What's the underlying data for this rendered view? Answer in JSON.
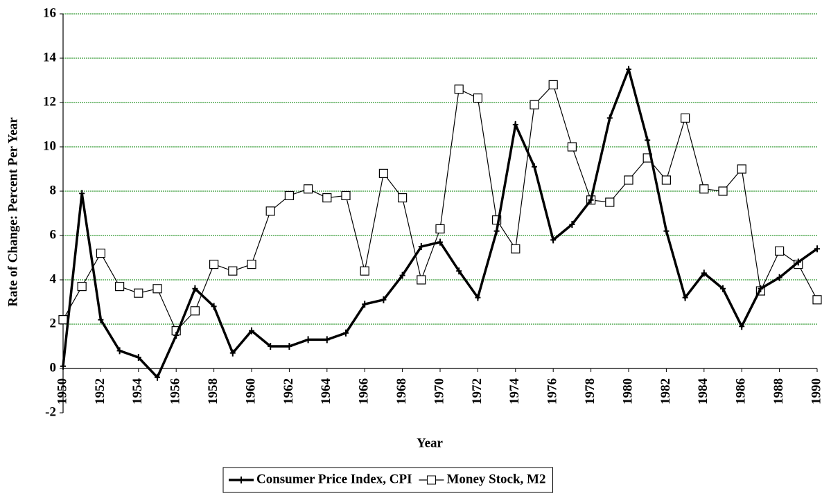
{
  "chart_data": {
    "type": "line",
    "x_label": "Year",
    "y_label": "Rate of Change: Percent Per Year",
    "x": [
      1950,
      1951,
      1952,
      1953,
      1954,
      1955,
      1956,
      1957,
      1958,
      1959,
      1960,
      1961,
      1962,
      1963,
      1964,
      1965,
      1966,
      1967,
      1968,
      1969,
      1970,
      1971,
      1972,
      1973,
      1974,
      1975,
      1976,
      1977,
      1978,
      1979,
      1980,
      1981,
      1982,
      1983,
      1984,
      1985,
      1986,
      1987,
      1988,
      1989,
      1990
    ],
    "series": [
      {
        "name": "Consumer Price Index, CPI",
        "color": "#000000",
        "marker": "plus",
        "values": [
          0.1,
          7.9,
          2.2,
          0.8,
          0.5,
          -0.4,
          1.5,
          3.6,
          2.8,
          0.7,
          1.7,
          1.0,
          1.0,
          1.3,
          1.3,
          1.6,
          2.9,
          3.1,
          4.2,
          5.5,
          5.7,
          4.4,
          3.2,
          6.2,
          11.0,
          9.1,
          5.8,
          6.5,
          7.6,
          11.3,
          13.5,
          10.3,
          6.2,
          3.2,
          4.3,
          3.6,
          1.9,
          3.6,
          4.1,
          4.8,
          5.4
        ]
      },
      {
        "name": "Money Stock, M2",
        "color": "#000000",
        "marker": "square",
        "values": [
          2.2,
          3.7,
          5.2,
          3.7,
          3.4,
          3.6,
          1.7,
          2.6,
          4.7,
          4.4,
          4.7,
          7.1,
          7.8,
          8.1,
          7.7,
          7.8,
          4.4,
          8.8,
          7.7,
          4.0,
          6.3,
          12.6,
          12.2,
          6.7,
          5.4,
          11.9,
          12.8,
          10.0,
          7.6,
          7.5,
          8.5,
          9.5,
          8.5,
          11.3,
          8.1,
          8.0,
          9.0,
          3.5,
          5.3,
          4.7,
          3.1
        ]
      }
    ],
    "xlim": [
      1950,
      1990
    ],
    "xticks": [
      1950,
      1952,
      1954,
      1956,
      1958,
      1960,
      1962,
      1964,
      1966,
      1968,
      1970,
      1972,
      1974,
      1976,
      1978,
      1980,
      1982,
      1984,
      1986,
      1988,
      1990
    ],
    "ylim": [
      -2,
      16
    ],
    "yticks": [
      -2,
      0,
      2,
      4,
      6,
      8,
      10,
      12,
      14,
      16
    ],
    "grid": true,
    "grid_color": "#008000",
    "legend": "bottom"
  }
}
